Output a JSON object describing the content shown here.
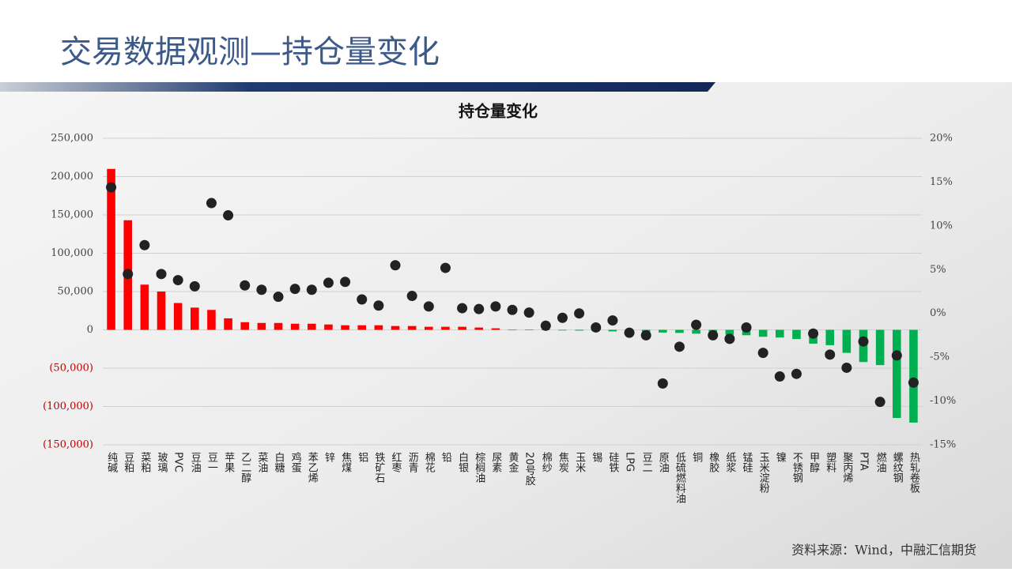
{
  "header": {
    "title": "交易数据观测—持仓量变化"
  },
  "chart_data": {
    "type": "bar-dot",
    "title": "持仓量变化",
    "categories": [
      "纯碱",
      "豆粕",
      "菜粕",
      "玻璃",
      "PVC",
      "豆油",
      "豆一",
      "苹果",
      "乙二醇",
      "菜油",
      "白糖",
      "鸡蛋",
      "苯乙烯",
      "锌",
      "焦煤",
      "铝",
      "铁矿石",
      "红枣",
      "沥青",
      "棉花",
      "铅",
      "白银",
      "棕榈油",
      "尿素",
      "黄金",
      "20号胶",
      "棉纱",
      "焦炭",
      "玉米",
      "锡",
      "硅铁",
      "LPG",
      "豆二",
      "原油",
      "低硫燃料油",
      "铜",
      "橡胶",
      "纸浆",
      "锰硅",
      "玉米淀粉",
      "镍",
      "不锈钢",
      "甲醇",
      "塑料",
      "聚丙烯",
      "PTA",
      "燃油",
      "螺纹钢",
      "热轧卷板"
    ],
    "series": [
      {
        "kind": "bar",
        "positive_color": "#ff0000",
        "negative_color": "#00b050",
        "values": [
          210000,
          143000,
          59000,
          50000,
          35000,
          29000,
          26000,
          15000,
          10000,
          9000,
          9000,
          8000,
          8000,
          7000,
          6000,
          6000,
          6000,
          5000,
          5000,
          4000,
          4000,
          4000,
          3000,
          2000,
          500,
          300,
          -500,
          -800,
          -1000,
          -1500,
          -2000,
          -2500,
          -3000,
          -3500,
          -4000,
          -5000,
          -6000,
          -6500,
          -7000,
          -9000,
          -10000,
          -12000,
          -18000,
          -20000,
          -30000,
          -42000,
          -46000,
          -115000,
          -121000
        ]
      },
      {
        "kind": "dot",
        "axis": "y2",
        "color": "#222222",
        "values": [
          14.4,
          4.5,
          7.8,
          4.5,
          3.8,
          3.1,
          12.6,
          11.2,
          3.2,
          2.7,
          1.9,
          2.8,
          2.7,
          3.5,
          3.6,
          1.6,
          0.9,
          5.5,
          2.0,
          0.8,
          5.2,
          0.6,
          0.5,
          0.8,
          0.4,
          0.1,
          -1.4,
          -0.5,
          0,
          -1.6,
          -0.8,
          -2.2,
          -2.5,
          -8.0,
          -3.8,
          -1.3,
          -2.5,
          -2.9,
          -1.6,
          -4.5,
          -7.2,
          -6.9,
          -2.3,
          -4.7,
          -6.2,
          -3.2,
          -10.1,
          -4.8,
          -7.9
        ]
      }
    ],
    "ylim": [
      -150000,
      250000
    ],
    "yticks": [
      {
        "value": -150000,
        "label": "(150,000)"
      },
      {
        "value": -100000,
        "label": "(100,000)"
      },
      {
        "value": -50000,
        "label": "(50,000)"
      },
      0,
      {
        "value": 50000,
        "label": "50,000"
      },
      {
        "value": 100000,
        "label": "100,000"
      },
      {
        "value": 150000,
        "label": "150,000"
      },
      {
        "value": 200000,
        "label": "200,000"
      },
      {
        "value": 250000,
        "label": "250,000"
      }
    ],
    "y2lim": [
      -15,
      20
    ],
    "y2ticks": [
      {
        "value": -15,
        "label": "-15%"
      },
      {
        "value": -10,
        "label": "-10%"
      },
      {
        "value": -5,
        "label": "-5%"
      },
      {
        "value": 0,
        "label": "0%"
      },
      {
        "value": 5,
        "label": "5%"
      },
      {
        "value": 10,
        "label": "10%"
      },
      {
        "value": 15,
        "label": "15%"
      },
      {
        "value": 20,
        "label": "20%"
      }
    ],
    "grid": true
  },
  "footer": {
    "source": "资料来源：Wind，中融汇信期货"
  }
}
